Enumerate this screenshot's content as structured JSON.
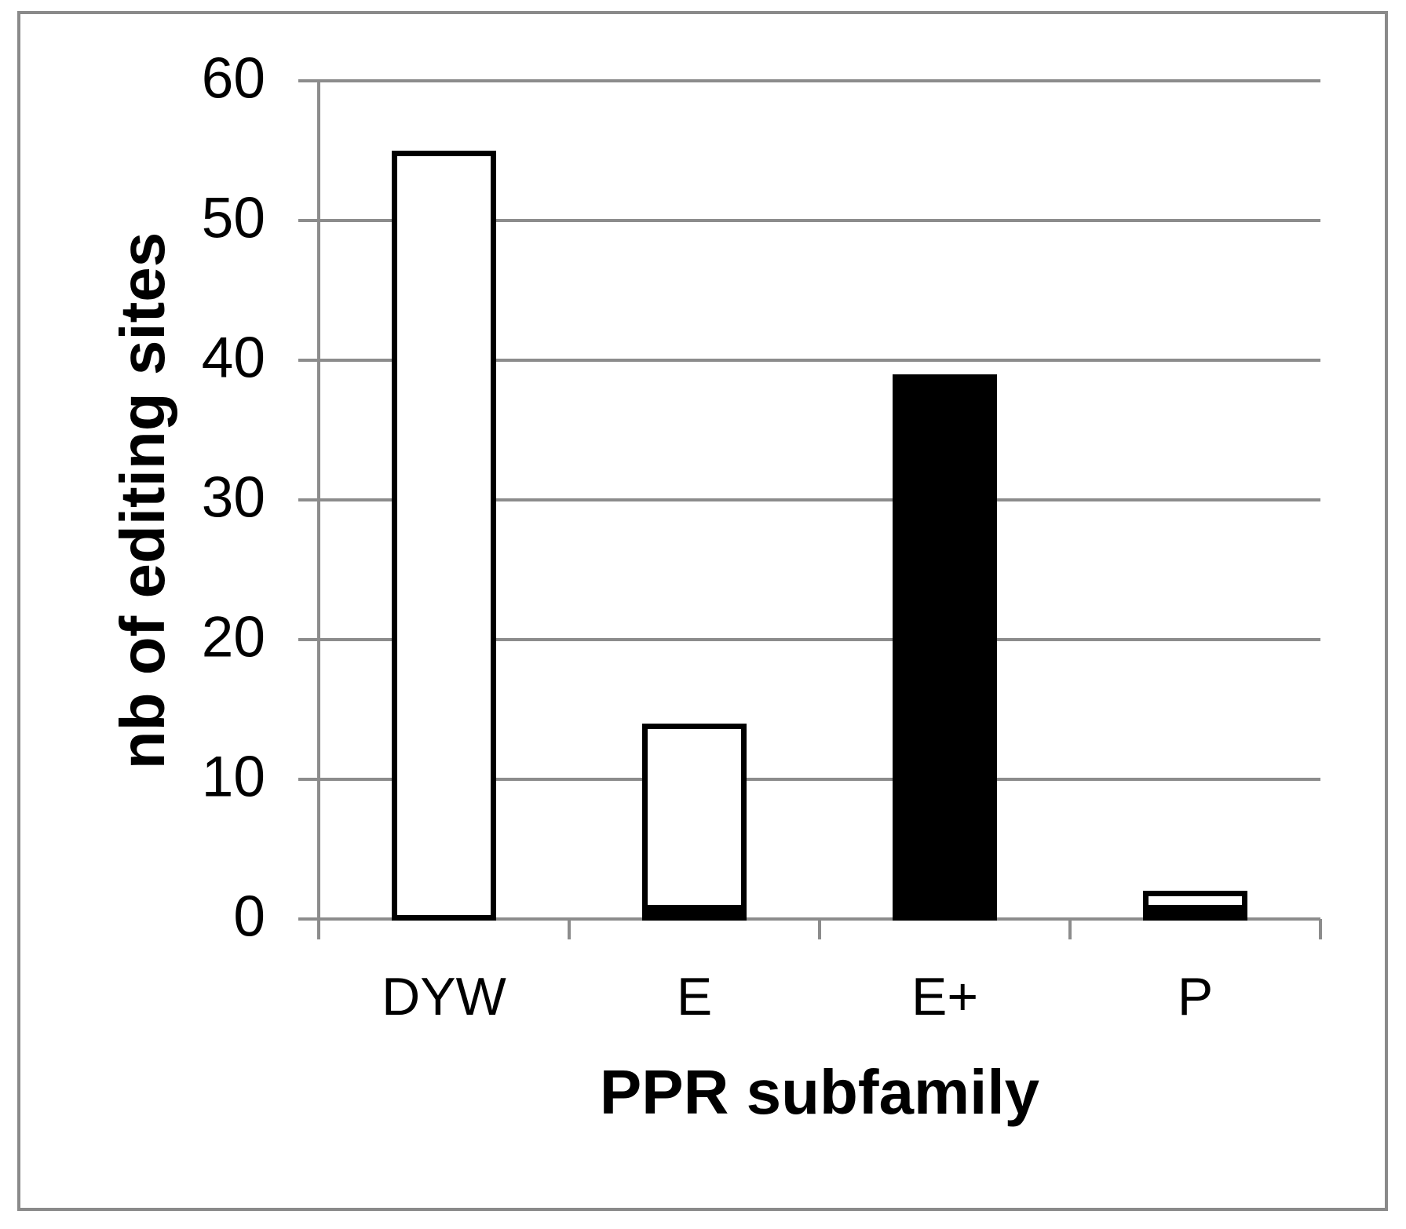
{
  "figure": {
    "x_axis_title": "PPR subfamily",
    "y_axis_title": "nb of editing sites"
  },
  "chart_data": {
    "type": "bar",
    "stacked": true,
    "title": "",
    "xlabel": "PPR subfamily",
    "ylabel": "nb of editing sites",
    "categories": [
      "DYW",
      "E",
      "E+",
      "P"
    ],
    "series": [
      {
        "name": "black-bottom-segment",
        "color": "#000000",
        "values": [
          0,
          1,
          39,
          1
        ]
      },
      {
        "name": "white-outlined-segment",
        "color": "#ffffff",
        "values": [
          55,
          13,
          0,
          1
        ]
      }
    ],
    "totals": [
      55,
      14,
      39,
      2
    ],
    "ylim": [
      0,
      60
    ],
    "yticks": [
      0,
      10,
      20,
      30,
      40,
      50,
      60
    ],
    "ytick_labels": [
      "0",
      "10",
      "20",
      "30",
      "40",
      "50",
      "60"
    ],
    "grid": "horizontal",
    "legend": "none",
    "colors": {
      "grid": "#8c8c8c",
      "axis": "#8c8c8c",
      "figure_border": "#8a8a8a",
      "bar_outline": "#000000",
      "text": "#000000",
      "background": "#ffffff"
    }
  }
}
